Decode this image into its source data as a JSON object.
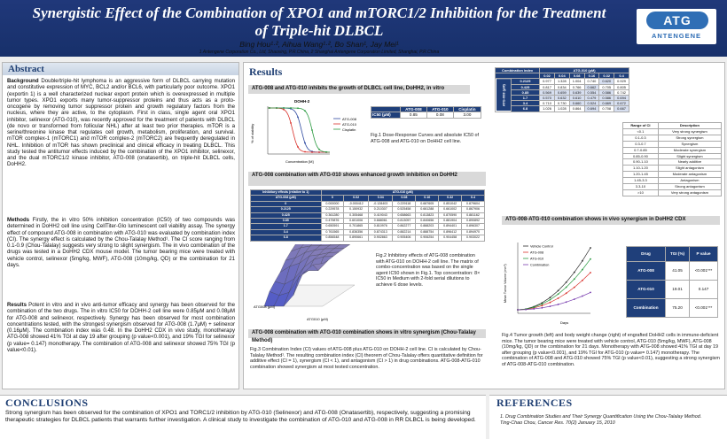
{
  "header": {
    "title": "Synergistic Effect of the Combination of XPO1 and mTORC1/2 Inhibition for the Treatment of Triple-hit DLBCL",
    "authors": "Bing Hou¹·², Aihua Wang¹·², Bo Shan¹, Jay Mei¹",
    "affiliations": "1 Antengene Corporation Co., Ltd, Shaoxing, P.R.China, 2 Shanghai Antengene Corporation Limited, Shanghai, P.R.China",
    "logo_mark": "ATG",
    "logo_text": "ANTENGENE"
  },
  "abstract": {
    "heading": "Abstract",
    "p1_lead": "Background",
    "p1": "Double/triple-hit lymphoma is an aggressive form of DLBCL carrying mutation and constitutive expression of MYC, BCL2 and/or BCL6, with particularly poor outcome. XPO1 (exportin 1) is a well characterized nuclear export protein which is overexpressed in multiple tumor types. XPO1 exports many tumor-suppressor proteins and thus acts as a proto-oncogene by removing tumor suppressor protein and growth regulatory factors from the nucleus, where they are active, to the cytoplasm. First in class, single agent oral XPO1 inhibitor, selinexor (ATG-010), was recently approved for the treatment of patients with DLBCL (de novo or transformed from follicular NHL) after at least two prior therapies. mTOR is a serine/threonine kinase that regulates cell growth, metabolism, proliferation, and survival. mTOR complex-1 (mTORC1) and mTOR complex-2 (mTORC2) are frequently deregulated in NHL. Inhibition of mTOR has shown preclinical and clinical efficacy in treating DLBCL. This study tested the antitumor effects induced by the combination of the XPO1 inhibitor, selinexor, and the dual mTORC1/2 kinase inhibitor, ATG-008 (onatasertib), on triple-hit DLBCL cells, DoHH2.",
    "p2_lead": "Methods",
    "p2": "Firstly, the in vitro 50% inhibition concentration (IC50) of two compounds was determined in DoHH2 cell line using CellTiter-Glo luminescent cell viability assay. The synergy effect of compound ATG-008 in combination with ATG-010 was evaluated by combination index (CI). The synergy effect is calculated by the Chou-Talalay Method¹. The CI score ranging from 0.1-0.9 (Chou-Talalay) suggests very strong to slight synergism. The in vivo combination of the drugs was tested in a DoHH2 CDX mouse model. The tumor bearing mice were treated with vehicle control, selinexor (5mg/kg, MWF), ATG-008 (10mg/kg, QD) or the combination for 21 days.",
    "p3_lead": "Results",
    "p3": "Potent in vitro and in vivo anti-tumor efficacy and synergy has been observed for the combination of the two drugs. The in vitro IC50 for DOHH-2 cell line were 0.85μM and 0.08μM for ATG-008 and selinexor, respectively. Synergy has been observed for most combination concentrations tested, with the strongest synergism observed for ATG-008 (1.7μM) + selinexor (0.16μM). The combination index was 0.48. In the DoHH2 CDX in vivo study, monotherapy ATG-008 showed 41% TGI at day 19 after grouping (p value<0.001), and 19% TGI for selinexor (p value= 0.147) monotherapy. The combination of ATG-008 and selinexor showed 75% TGI (p value<0.01)."
  },
  "results": {
    "heading": "Results",
    "sub1": "ATG-008 and ATG-010  inhibits the growth of  DLBCL cell line, DoHH2, in vitro",
    "fig1_title": "DOHH-2",
    "fig1_legend": [
      "ATG-008",
      "ATG-010",
      "Cisplatin"
    ],
    "fig1_xlabel": "Concentration [M]",
    "fig1_ylabel": "% of viability",
    "ic50_table": {
      "headers": [
        "",
        "ATG-008",
        "ATG-010",
        "Cisplatin"
      ],
      "row_label": "IC50 (μM)",
      "values": [
        "0.85",
        "0.08",
        "3.00"
      ]
    },
    "fig1_caption": "Fig.1 Dose-Response Curves and absolute IC50 of ATG-008 and ATG-010 on DoHH2 cell line.",
    "sub2": "ATG-008 combination with ATG-010 shows enhanced growth inhibition on DoHH2",
    "inhib_table": {
      "corner": "Inhibitory effects (relative to 1)",
      "col_label": "ATG-010 (μM)",
      "col_headers": [
        "0",
        "0.02",
        "0.04",
        "0.08",
        "0.16",
        "0.32",
        "0.4"
      ],
      "row_label": "ATG-008 (μM)",
      "rows": [
        [
          "0",
          "0.000000",
          "-0.000412",
          "-0.128403",
          "0.229118",
          "0.687605",
          "0.851042",
          "0.879604"
        ],
        [
          "0.2125",
          "0.229578",
          "0.150932",
          "0.210307",
          "0.525458",
          "0.661288",
          "0.661002",
          "0.867906"
        ],
        [
          "0.425",
          "0.361280",
          "0.305468",
          "0.419043",
          "0.658663",
          "0.813823",
          "0.870590",
          "0.881162"
        ],
        [
          "0.85",
          "0.479876",
          "0.601006",
          "0.668061",
          "0.813057",
          "0.840656",
          "0.881904",
          "0.890892"
        ],
        [
          "1.7",
          "0.650591",
          "0.701865",
          "0.810976",
          "0.862277",
          "0.888203",
          "0.894401",
          "0.896307"
        ],
        [
          "3.4",
          "0.761565",
          "0.836356",
          "0.874313",
          "0.882214",
          "0.888754",
          "0.896412",
          "0.894970"
        ],
        [
          "6.8",
          "0.856548",
          "0.890661",
          "0.902863",
          "0.905406",
          "0.906254",
          "0.904458",
          "0.903022"
        ]
      ]
    },
    "fig2_caption": "Fig.2 Inhibitory effects of ATG-008 combination with ATG-010 on DOHH-2 cell line. The matrix of combo-concentration was based on the single agent IC50 shown in Fig.1. Top concentration: 8× IC50 in Medium with 2-fold serial dilutions to achieve 6 dose levels.",
    "fig2_xlabel": "ATG010 (μM)",
    "fig2_ylabel": "ATG008 (μM)",
    "sub3": "ATG-008 combination with ATG-010 combination shows in vitro synergism (Chou-Talalay Method)",
    "ci_table": {
      "col_label": "ATG-010 (μM)",
      "row_label": "ATG-008 (μM)",
      "corner": "Combination index",
      "col_headers": [
        "0.02",
        "0.04",
        "0.08",
        "0.16",
        "0.32",
        "0.4"
      ],
      "rows": [
        [
          "0.2125",
          "0.977",
          "1.328",
          "1.004",
          "0.740",
          "0.620",
          "0.929"
        ],
        [
          "0.425",
          "0.817",
          "0.834",
          "0.766",
          "0.662",
          "0.705",
          "0.805"
        ],
        [
          "0.85",
          "0.569",
          "0.659",
          "0.639",
          "0.554",
          "0.586",
          "0.742"
        ],
        [
          "1.7",
          "0.570",
          "0.632",
          "0.610",
          "0.479",
          "0.586",
          "0.694"
        ],
        [
          "3.4",
          "0.710",
          "0.730",
          "0.660",
          "0.524",
          "0.669",
          "0.672"
        ],
        [
          "6.8",
          "1.026",
          "1.028",
          "0.864",
          "0.694",
          "0.708",
          "0.667"
        ]
      ]
    },
    "ci_legend": {
      "headers": [
        "Range of CI",
        "Description"
      ],
      "rows": [
        [
          "<0.1",
          "Very strong synergism"
        ],
        [
          "0.1-0.3",
          "Strong synergism"
        ],
        [
          "0.3-0.7",
          "Synergism"
        ],
        [
          "0.7-0.85",
          "Moderate synergism"
        ],
        [
          "0.85-0.90",
          "Slight synergism"
        ],
        [
          "0.90-1.10",
          "Nearly additive"
        ],
        [
          "1.10-1.20",
          "Slight antagonism"
        ],
        [
          "1.20-1.45",
          "Moderate antagonism"
        ],
        [
          "1.45-3.3",
          "Antagonism"
        ],
        [
          "3.3-10",
          "Strong antagonism"
        ],
        [
          ">10",
          "Very strong antagonism"
        ]
      ]
    },
    "fig3_caption": "Fig.3 Combination Index (CI) values of ATG-008 plus ATG-010 on DOHH-2 cell line. CI is calculated by Chou-Talalay Method¹. The resulting combination index (CI) theorem of Chou-Talalay offers quantitative definition for additive effect (CI = 1), synergism (CI < 1), and antagonism (CI > 1) in drug combinations. ATG-008-ATG-010 combination showed synergism at most tested concentration.",
    "sub4": "ATG-008-ATG-010 combination shows in vivo synergism in DoHH2 CDX",
    "fig4_legend": [
      "Vehicle Control",
      "ATG-008",
      "ATG-010",
      "Combination"
    ],
    "fig4_xlabel": "Days",
    "fig4_ylabel": "Mean Tumor Volume (mm³)",
    "tgi_table": {
      "headers": [
        "Drug",
        "TGI (%)",
        "P value"
      ],
      "rows": [
        [
          "ATG-008",
          "41.05",
          "<0.001***"
        ],
        [
          "ATG-010",
          "19.01",
          "0.147"
        ],
        [
          "Combination",
          "75.20",
          "<0.001***"
        ]
      ]
    },
    "fig4_caption": "Fig.4 Tumor growth (left) and body weight change (right) of engrafted DoHH2 cells in immune-deficient mice. The tumor bearing mice were treated with vehicle control, ATG-010 (5mg/kg, MWF), ATG-008 (10mg/kg, QD) or the combination for 21 days. Monotherapy with ATG-008 showed 41% TGI at day 19 after grouping (p value<0.001), and 19% TGI for ATG-010 (p value= 0.147) monotherapy. The combination of ATG-008 and ATG-010 showed 75% TGI (p value<0.01), suggesting a strong synergism of ATG-008-ATG-010 combination."
  },
  "conclusions": {
    "heading": "CONCLUSIONS",
    "text": "Strong synergism has been observed for the combination of XPO1 and TORC1/2 inhibition by ATG-010 (Selinexor) and ATG-008 (Onatasertib), respectively, suggesting a promising therapeutic strategies for DLBCL patients that warrants further investigation. A clinical study to investigate the combination of ATG-010 and ATG-008 in RR DLBCL is being developed."
  },
  "references": {
    "heading": "REFERENCES",
    "text": "1. Drug Combination Studies and Their Synergy Quantification Using the Chou-Talalay Method. Ting-Chao Chou, Cancer Res. 70(2) January 15, 2010"
  },
  "colors": {
    "header_blue": "#1b3470",
    "accent_blue": "#2f6eb5",
    "table_header": "#1f3f7a",
    "ci_highlight": "#d7dff0"
  }
}
